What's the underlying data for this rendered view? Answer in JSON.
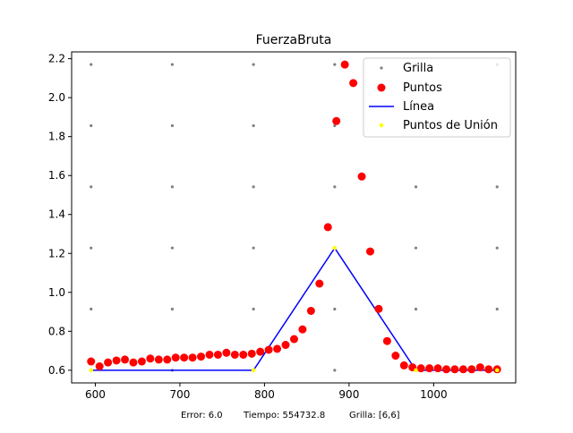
{
  "chart_data": {
    "type": "scatter",
    "title": "FuerzaBruta",
    "xlim": [
      572,
      1097
    ],
    "ylim": [
      0.535,
      2.235
    ],
    "xticks": [
      600,
      700,
      800,
      900,
      1000
    ],
    "yticks": [
      0.6,
      0.8,
      1.0,
      1.2,
      1.4,
      1.6,
      1.8,
      2.0,
      2.2
    ],
    "x_tick_labels": [
      "600",
      "700",
      "800",
      "900",
      "1000"
    ],
    "y_tick_labels": [
      "0.6",
      "0.8",
      "1.0",
      "1.2",
      "1.4",
      "1.6",
      "1.8",
      "2.0",
      "2.2"
    ],
    "legend_position": "top-right",
    "series": [
      {
        "name": "Grilla",
        "kind": "grid-points",
        "color": "#808080",
        "x": [
          595,
          691,
          787,
          883,
          979,
          1075
        ],
        "y": [
          0.6,
          0.914,
          1.228,
          1.542,
          1.856,
          2.17
        ]
      },
      {
        "name": "Puntos",
        "kind": "scatter",
        "color": "#ff0000",
        "x": [
          595,
          605,
          615,
          625,
          635,
          645,
          655,
          665,
          675,
          685,
          695,
          705,
          715,
          725,
          735,
          745,
          755,
          765,
          775,
          785,
          795,
          805,
          815,
          825,
          835,
          845,
          855,
          865,
          875,
          885,
          895,
          905,
          915,
          925,
          935,
          945,
          955,
          965,
          975,
          985,
          995,
          1005,
          1015,
          1025,
          1035,
          1045,
          1055,
          1065,
          1075
        ],
        "y": [
          0.645,
          0.62,
          0.64,
          0.65,
          0.655,
          0.64,
          0.645,
          0.66,
          0.655,
          0.655,
          0.665,
          0.665,
          0.665,
          0.67,
          0.68,
          0.68,
          0.69,
          0.68,
          0.68,
          0.685,
          0.695,
          0.705,
          0.71,
          0.73,
          0.76,
          0.81,
          0.905,
          1.045,
          1.335,
          1.88,
          2.17,
          2.075,
          1.595,
          1.21,
          0.915,
          0.75,
          0.675,
          0.625,
          0.615,
          0.61,
          0.61,
          0.61,
          0.605,
          0.605,
          0.605,
          0.605,
          0.615,
          0.605,
          0.605
        ]
      },
      {
        "name": "Línea",
        "kind": "line",
        "color": "#0000ff",
        "x": [
          595,
          787,
          883,
          979,
          1075
        ],
        "y": [
          0.6,
          0.6,
          1.228,
          0.6,
          0.6
        ]
      },
      {
        "name": "Puntos de Unión",
        "kind": "scatter",
        "color": "#ffff00",
        "x": [
          595,
          787,
          883,
          979,
          1075
        ],
        "y": [
          0.6,
          0.6,
          1.228,
          0.6,
          0.6
        ]
      }
    ],
    "footer": {
      "error_label": "Error: 6.0",
      "tiempo_label": "Tiempo: 554732.8",
      "grilla_label": "Grilla: [6,6]"
    }
  }
}
